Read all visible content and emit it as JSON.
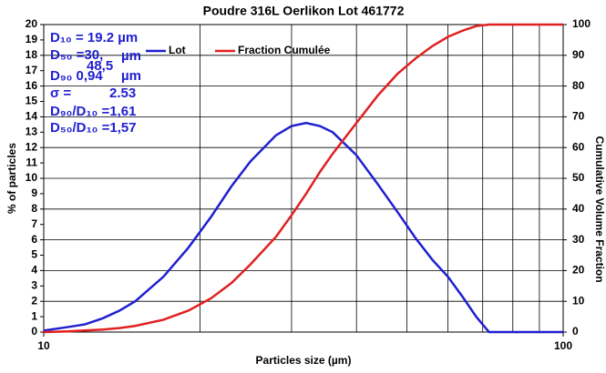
{
  "chart_data": {
    "type": "line",
    "title": "Poudre 316L Oerlikon Lot 461772",
    "xlabel": "Particles size (µm)",
    "ylabel": "% of particles",
    "y2label": "Cumulative Volume Fraction",
    "log_x": true,
    "x": [
      10,
      11,
      12,
      13,
      14,
      15,
      17,
      19,
      21,
      23,
      25,
      28,
      30,
      32,
      34,
      36,
      40,
      44,
      48,
      52,
      56,
      60,
      64,
      68,
      72,
      76,
      80,
      90,
      100
    ],
    "series": [
      {
        "name": "Lot",
        "color": "#1f1fd0",
        "values": [
          0.1,
          0.3,
          0.5,
          0.9,
          1.4,
          2.0,
          3.6,
          5.5,
          7.5,
          9.5,
          11.1,
          12.8,
          13.4,
          13.6,
          13.4,
          13.0,
          11.5,
          9.6,
          7.8,
          6.1,
          4.7,
          3.6,
          2.3,
          1.0,
          0,
          0,
          0,
          0,
          0
        ]
      },
      {
        "name": "Fraction Cumulée",
        "color": "#e02020",
        "axis": "y2",
        "values": [
          0,
          0.2,
          0.5,
          0.8,
          1.3,
          2,
          4,
          7,
          11,
          16,
          22,
          31,
          38,
          45,
          52,
          58,
          68,
          77,
          84,
          89,
          93,
          96,
          98,
          99.5,
          100,
          100,
          100,
          100,
          100
        ]
      }
    ],
    "xlim": [
      10,
      100
    ],
    "xticks": [
      10,
      100
    ],
    "xminor": [
      20,
      30,
      40,
      50,
      60,
      70,
      80,
      90
    ],
    "ylim": [
      0,
      20
    ],
    "yticks": [
      0,
      1,
      2,
      3,
      4,
      5,
      6,
      7,
      8,
      9,
      10,
      11,
      12,
      13,
      14,
      15,
      16,
      17,
      18,
      19,
      20
    ],
    "y2lim": [
      0,
      100
    ],
    "y2ticks": [
      0,
      10,
      20,
      30,
      40,
      50,
      60,
      70,
      80,
      90,
      100
    ],
    "grid": true,
    "annotations": [
      "D₁₀ = 19.2  µm",
      "D₅₀ =30,",
      "µm",
      "48,5",
      "D₉₀ 0,94",
      "µm",
      "σ =",
      "2.53",
      "D₉₀/D₁₀ =1,61",
      "D₅₀/D₁₀ =1,57"
    ]
  }
}
